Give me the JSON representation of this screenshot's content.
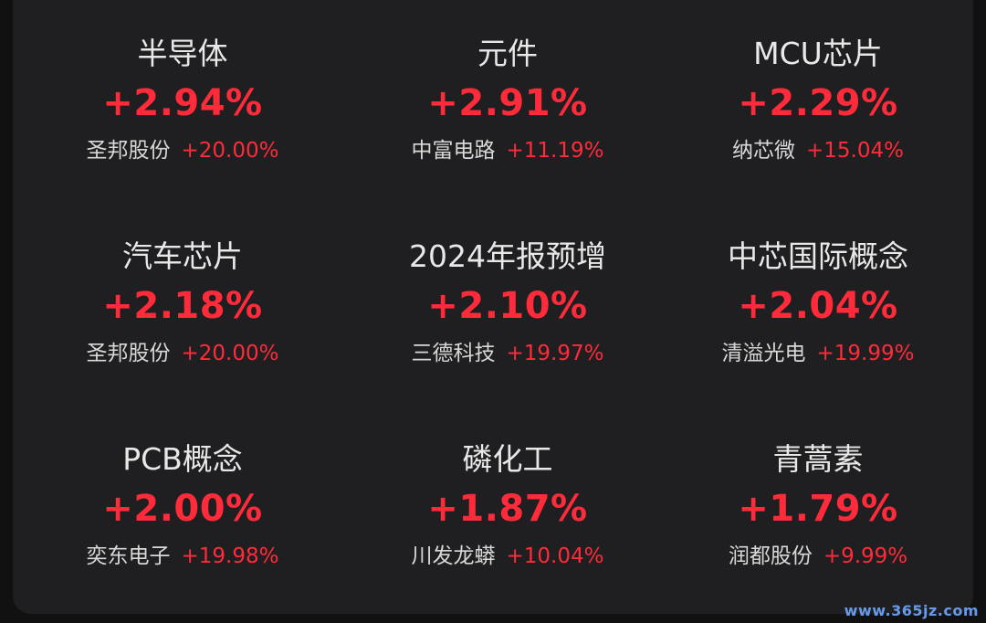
{
  "colors": {
    "background": "#111111",
    "panel": "#1f1f21",
    "text": "#e8e8e8",
    "up": "#ff2b3a"
  },
  "sectors": [
    {
      "name": "半导体",
      "change": "+2.94%",
      "lead_stock": "圣邦股份",
      "lead_change": "+20.00%"
    },
    {
      "name": "元件",
      "change": "+2.91%",
      "lead_stock": "中富电路",
      "lead_change": "+11.19%"
    },
    {
      "name": "MCU芯片",
      "change": "+2.29%",
      "lead_stock": "纳芯微",
      "lead_change": "+15.04%"
    },
    {
      "name": "汽车芯片",
      "change": "+2.18%",
      "lead_stock": "圣邦股份",
      "lead_change": "+20.00%"
    },
    {
      "name": "2024年报预增",
      "change": "+2.10%",
      "lead_stock": "三德科技",
      "lead_change": "+19.97%"
    },
    {
      "name": "中芯国际概念",
      "change": "+2.04%",
      "lead_stock": "清溢光电",
      "lead_change": "+19.99%"
    },
    {
      "name": "PCB概念",
      "change": "+2.00%",
      "lead_stock": "奕东电子",
      "lead_change": "+19.98%"
    },
    {
      "name": "磷化工",
      "change": "+1.87%",
      "lead_stock": "川发龙蟒",
      "lead_change": "+10.04%"
    },
    {
      "name": "青蒿素",
      "change": "+1.79%",
      "lead_stock": "润都股份",
      "lead_change": "+9.99%"
    }
  ],
  "watermark": "www.365jz.com"
}
